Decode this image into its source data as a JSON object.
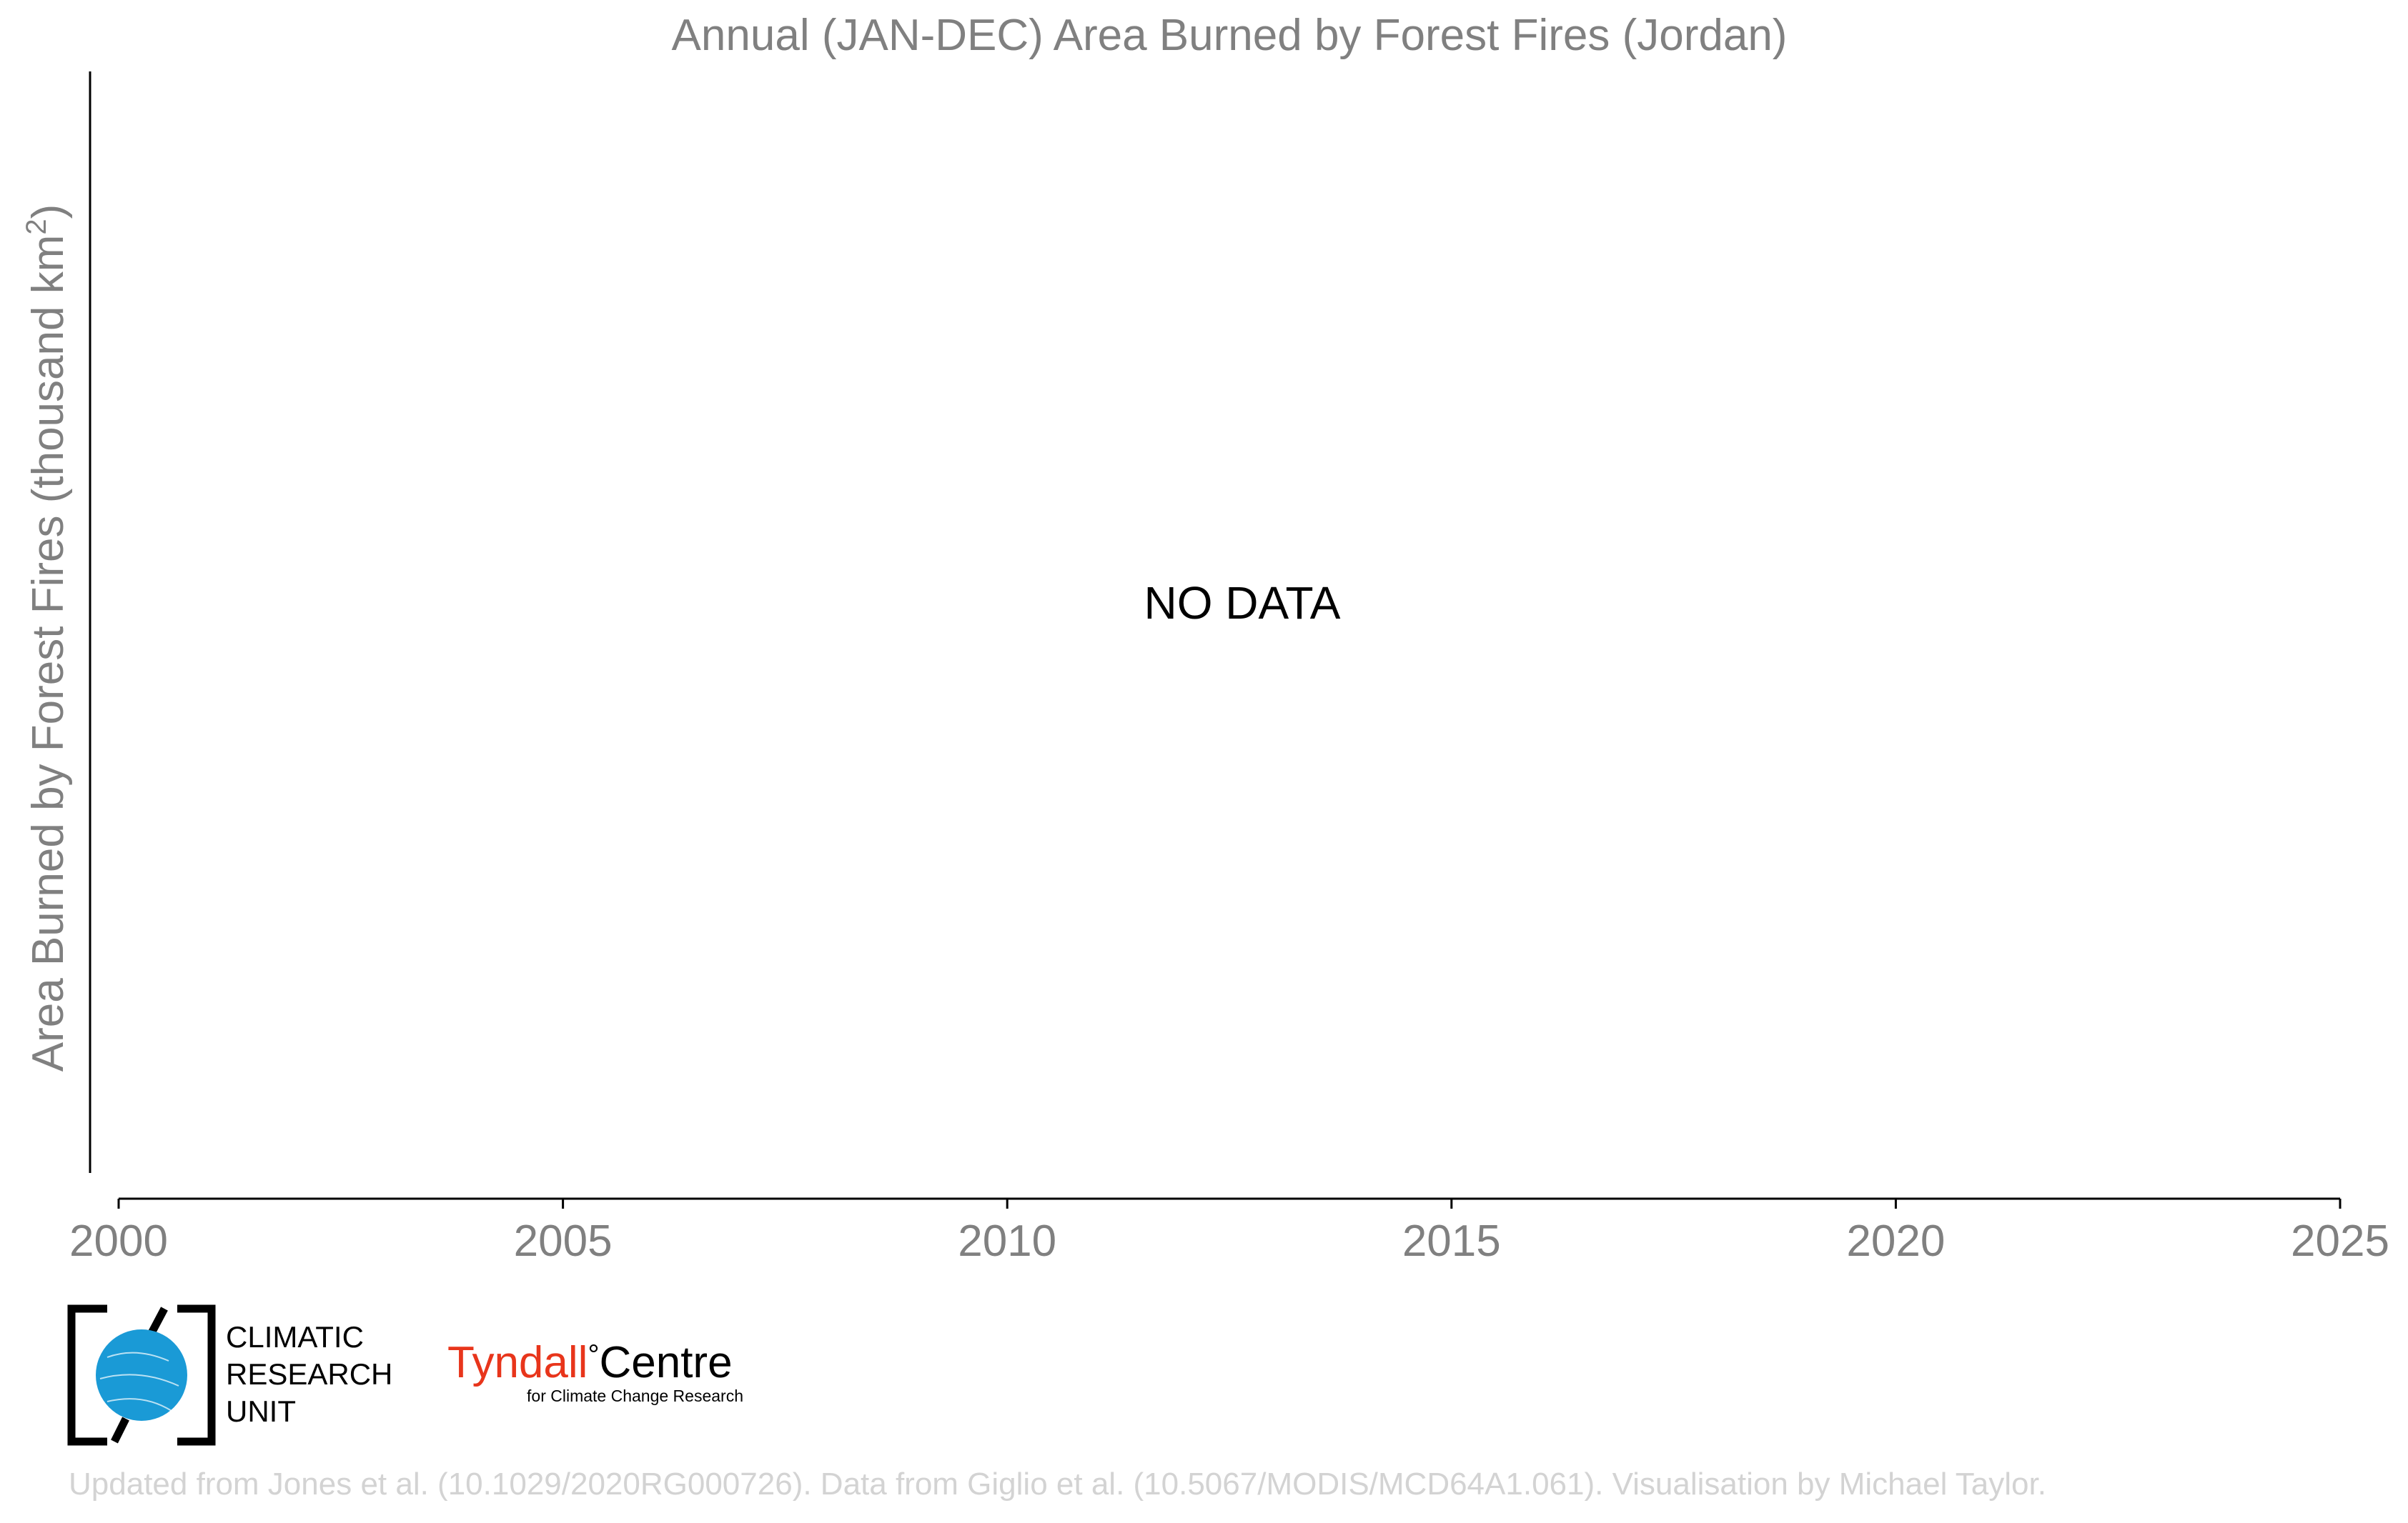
{
  "chart_data": {
    "type": "line",
    "title": "Annual (JAN-DEC) Area Burned by Forest Fires (Jordan)",
    "ylabel_main": "Area Burned by Forest Fires (thousand km",
    "ylabel_sup": "2",
    "ylabel_close": ")",
    "xlabel": "",
    "xlim": [
      2000,
      2025
    ],
    "x_ticks": [
      2000,
      2005,
      2010,
      2015,
      2020,
      2025
    ],
    "x_tick_labels": [
      "2000",
      "2005",
      "2010",
      "2015",
      "2020",
      "2025"
    ],
    "series": [],
    "annotation": "NO DATA",
    "grid": false,
    "legend": "none"
  },
  "logos": {
    "cru_line1": "CLIMATIC",
    "cru_line2": "RESEARCH",
    "cru_line3": "UNIT",
    "tyndall_word": "Tyndall",
    "tyndall_degree": "°",
    "tyndall_centre": "Centre",
    "tyndall_subtitle": "for Climate Change Research"
  },
  "credit": "Updated from Jones et al. (10.1029/2020RG000726). Data from Giglio et al. (10.5067/MODIS/MCD64A1.061). Visualisation by Michael Taylor.",
  "colors": {
    "text_grey": "#808080",
    "credit_grey": "#d3d3d3",
    "axis": "#000000",
    "cru_blue": "#1a9ad6",
    "tyndall_red": "#e8351b"
  }
}
